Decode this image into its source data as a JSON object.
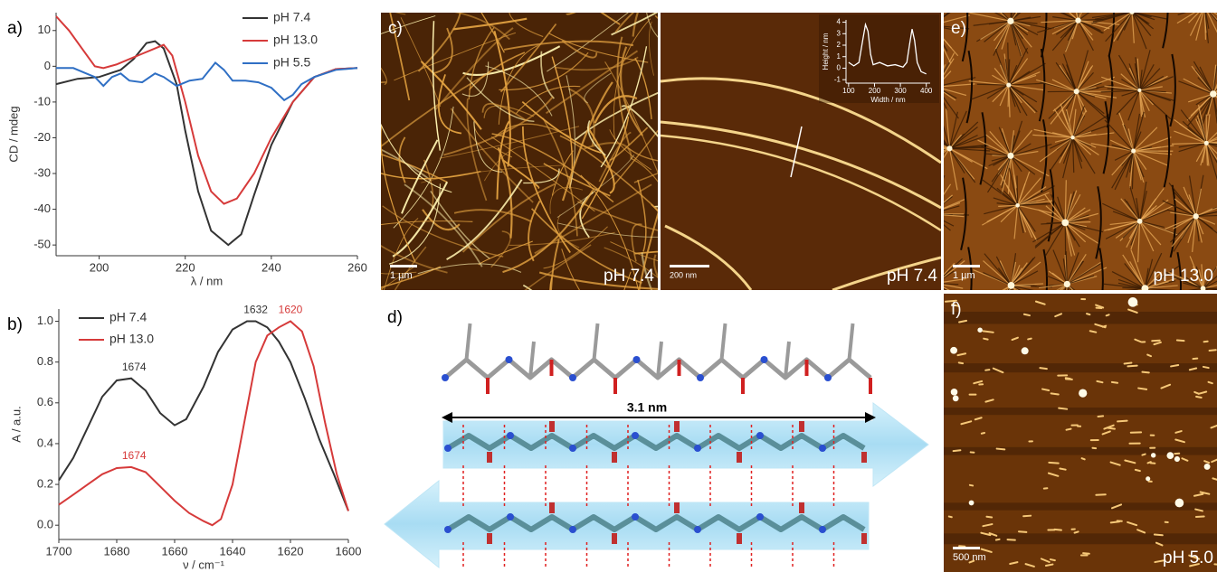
{
  "chart_data": [
    {
      "type": "line",
      "panel_label": "a)",
      "x_label": "λ / nm",
      "y_label": "CD / mdeg",
      "xlim": [
        190,
        260
      ],
      "xticks": [
        200,
        220,
        240,
        260
      ],
      "ylim": [
        -53,
        15
      ],
      "yticks": [
        -50,
        -40,
        -30,
        -20,
        -10,
        0,
        10
      ],
      "legend": "upper right",
      "series": [
        {
          "name": "pH 7.4",
          "color": "#333333",
          "x": [
            190,
            195,
            200,
            205,
            208,
            211,
            213,
            215,
            218,
            220,
            223,
            226,
            230,
            233,
            236,
            240,
            245,
            250,
            255,
            260
          ],
          "values": [
            -5,
            -3.5,
            -3,
            -1,
            2,
            6.5,
            7,
            5,
            -5,
            -18,
            -35,
            -46,
            -50,
            -47,
            -36,
            -22,
            -10,
            -3,
            -0.8,
            -0.5
          ]
        },
        {
          "name": "pH 13.0",
          "color": "#d63a3a",
          "x": [
            190,
            193,
            196,
            199,
            201,
            204,
            207,
            210,
            213,
            215,
            217,
            220,
            223,
            226,
            229,
            232,
            236,
            240,
            245,
            250,
            255,
            260
          ],
          "values": [
            14,
            10,
            5,
            0,
            -0.5,
            0.5,
            2,
            3.5,
            5,
            6,
            3,
            -10,
            -25,
            -35,
            -38.5,
            -37,
            -30,
            -20,
            -10,
            -3,
            -0.8,
            -0.5
          ]
        },
        {
          "name": "pH 5.5",
          "color": "#2f6fc4",
          "x": [
            190,
            194,
            197,
            199,
            201,
            203,
            205,
            207,
            210,
            213,
            215,
            218,
            221,
            224,
            227,
            229,
            231,
            234,
            237,
            240,
            243,
            245,
            247,
            250,
            255,
            260
          ],
          "values": [
            -0.5,
            -0.5,
            -2,
            -3,
            -5.5,
            -3,
            -2,
            -4,
            -4.5,
            -2,
            -3,
            -5.5,
            -4,
            -3.5,
            1,
            -1,
            -4,
            -4,
            -4.5,
            -6,
            -9.5,
            -8,
            -5,
            -3,
            -1,
            -0.5
          ]
        }
      ]
    },
    {
      "type": "line",
      "panel_label": "b)",
      "x_label": "ν / cm⁻¹",
      "y_label": "A / a.u.",
      "xlim": [
        1700,
        1600
      ],
      "xticks": [
        1700,
        1680,
        1660,
        1640,
        1620,
        1600
      ],
      "ylim": [
        -0.07,
        1.06
      ],
      "yticks": [
        {
          "value": 0,
          "label": "0.0"
        },
        0.2,
        0.4,
        0.6,
        0.8,
        {
          "value": 1,
          "label": "1.0"
        }
      ],
      "legend": "upper left",
      "series": [
        {
          "name": "pH 7.4",
          "color": "#333333",
          "x": [
            1700,
            1695,
            1690,
            1685,
            1680,
            1675,
            1670,
            1665,
            1660,
            1656,
            1650,
            1645,
            1640,
            1635,
            1632,
            1628,
            1624,
            1620,
            1615,
            1610,
            1605,
            1600
          ],
          "values": [
            0.22,
            0.33,
            0.48,
            0.63,
            0.71,
            0.72,
            0.66,
            0.55,
            0.49,
            0.52,
            0.68,
            0.85,
            0.96,
            1.0,
            1.0,
            0.97,
            0.9,
            0.8,
            0.62,
            0.42,
            0.25,
            0.07
          ]
        },
        {
          "name": "pH 13.0",
          "color": "#d63a3a",
          "x": [
            1700,
            1695,
            1690,
            1685,
            1680,
            1675,
            1670,
            1665,
            1660,
            1655,
            1650,
            1647,
            1644,
            1640,
            1636,
            1632,
            1628,
            1624,
            1620,
            1616,
            1612,
            1608,
            1604,
            1600
          ],
          "values": [
            0.1,
            0.15,
            0.2,
            0.25,
            0.28,
            0.285,
            0.26,
            0.19,
            0.12,
            0.06,
            0.02,
            0.0,
            0.03,
            0.2,
            0.5,
            0.8,
            0.93,
            0.97,
            1.0,
            0.95,
            0.78,
            0.5,
            0.25,
            0.07
          ]
        }
      ],
      "annotations": [
        {
          "label": "1674",
          "x": 1674,
          "y": 0.72,
          "color": "#333333"
        },
        {
          "label": "1632",
          "x": 1632,
          "y": 1.0,
          "color": "#333333"
        },
        {
          "label": "1674",
          "x": 1674,
          "y": 0.285,
          "color": "#d63a3a"
        },
        {
          "label": "1620",
          "x": 1620,
          "y": 1.0,
          "color": "#d63a3a"
        }
      ]
    },
    {
      "type": "line",
      "x_label": "Width / nm",
      "y_label": "Height / nm",
      "xlim": [
        90,
        415
      ],
      "xticks": [
        100,
        200,
        300,
        400
      ],
      "ylim": [
        -1.3,
        4.2
      ],
      "yticks": [
        -1,
        0,
        1,
        2,
        3,
        4
      ],
      "series": [
        {
          "color": "#ffffff",
          "x": [
            100,
            120,
            140,
            155,
            165,
            175,
            185,
            195,
            220,
            250,
            280,
            310,
            325,
            335,
            345,
            355,
            365,
            380,
            400
          ],
          "values": [
            0.5,
            0.2,
            0.5,
            2.5,
            3.8,
            3.2,
            1.2,
            0.3,
            0.5,
            0.2,
            0.3,
            0.1,
            0.5,
            2,
            3.4,
            2.4,
            0.5,
            -0.3,
            -0.5
          ]
        }
      ]
    }
  ],
  "images": [
    {
      "panel_label": "c)",
      "scale_bar": "1 µm",
      "condition": "pH 7.4"
    },
    {
      "scale_bar": "200 nm",
      "condition": "pH 7.4"
    },
    {
      "panel_label": "e)",
      "scale_bar": "1 µm",
      "condition": "pH 13.0"
    },
    {
      "panel_label": "f)",
      "scale_bar": "500 nm",
      "condition": "pH 5.0"
    }
  ],
  "model": {
    "panel_label": "d)",
    "length_label": "3.1 nm"
  }
}
